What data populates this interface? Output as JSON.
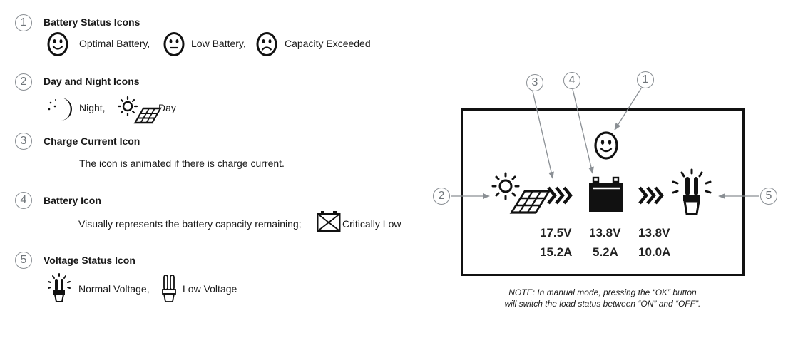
{
  "legend": {
    "items": [
      {
        "num": "1",
        "title": "Battery Status Icons",
        "labels": {
          "optimal": "Optimal Battery,",
          "low": "Low Battery,",
          "exceeded": "Capacity Exceeded"
        }
      },
      {
        "num": "2",
        "title": "Day and Night Icons",
        "labels": {
          "night": "Night,",
          "day": "Day"
        }
      },
      {
        "num": "3",
        "title": "Charge Current Icon",
        "desc": "The icon is animated if there is charge current."
      },
      {
        "num": "4",
        "title": "Battery Icon",
        "desc": "Visually represents the battery capacity remaining;",
        "critical": "Critically Low"
      },
      {
        "num": "5",
        "title": "Voltage Status Icon",
        "labels": {
          "normal": "Normal Voltage,",
          "low": "Low Voltage"
        }
      }
    ]
  },
  "display": {
    "callouts": {
      "c1": "1",
      "c2": "2",
      "c3": "3",
      "c4": "4",
      "c5": "5"
    },
    "solar": {
      "voltage": "17.5V",
      "current": "15.2A"
    },
    "battery": {
      "voltage": "13.8V",
      "current": "5.2A"
    },
    "load": {
      "voltage": "13.8V",
      "current": "10.0A"
    }
  },
  "note": {
    "line1": "NOTE: In manual mode, pressing the “OK” button",
    "line2": "will switch the load status between “ON” and “OFF”."
  }
}
